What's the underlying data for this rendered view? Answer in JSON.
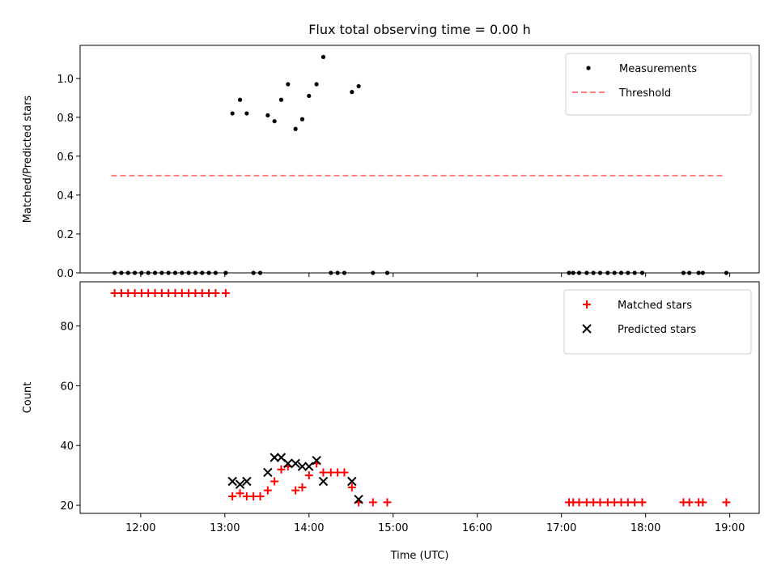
{
  "figure": {
    "title": "Flux total observing time = 0.00 h"
  },
  "chart_data": [
    {
      "type": "scatter",
      "ylabel": "Matched/Predicted stars",
      "xlim": [
        11.28,
        19.35
      ],
      "ylim": [
        0.0,
        1.17
      ],
      "yticks": [
        0.0,
        0.2,
        0.4,
        0.6,
        0.8,
        1.0
      ],
      "ytick_labels": [
        "0.0",
        "0.2",
        "0.4",
        "0.6",
        "0.8",
        "1.0"
      ],
      "xticks": [
        12,
        13,
        14,
        15,
        16,
        17,
        18,
        19
      ],
      "legend_position": "upper-right",
      "colors": {
        "measurements": "#000000",
        "threshold": "#ff7f7f"
      },
      "series": [
        {
          "name": "Measurements",
          "kind": "scatter",
          "points": [
            [
              11.69,
              0
            ],
            [
              11.77,
              0
            ],
            [
              11.85,
              0
            ],
            [
              11.93,
              0
            ],
            [
              12.01,
              0
            ],
            [
              12.09,
              0
            ],
            [
              12.17,
              0
            ],
            [
              12.25,
              0
            ],
            [
              12.33,
              0
            ],
            [
              12.41,
              0
            ],
            [
              12.49,
              0
            ],
            [
              12.57,
              0
            ],
            [
              12.65,
              0
            ],
            [
              12.73,
              0
            ],
            [
              12.81,
              0
            ],
            [
              12.89,
              0
            ],
            [
              13.01,
              0
            ],
            [
              13.09,
              0.82
            ],
            [
              13.18,
              0.89
            ],
            [
              13.26,
              0.82
            ],
            [
              13.34,
              0
            ],
            [
              13.42,
              0
            ],
            [
              13.51,
              0.81
            ],
            [
              13.59,
              0.78
            ],
            [
              13.67,
              0.89
            ],
            [
              13.75,
              0.97
            ],
            [
              13.84,
              0.74
            ],
            [
              13.92,
              0.79
            ],
            [
              14.0,
              0.91
            ],
            [
              14.09,
              0.97
            ],
            [
              14.17,
              1.11
            ],
            [
              14.26,
              0
            ],
            [
              14.34,
              0
            ],
            [
              14.42,
              0
            ],
            [
              14.51,
              0.93
            ],
            [
              14.59,
              0.96
            ],
            [
              14.76,
              0
            ],
            [
              14.93,
              0
            ],
            [
              17.09,
              0
            ],
            [
              17.14,
              0
            ],
            [
              17.21,
              0
            ],
            [
              17.3,
              0
            ],
            [
              17.38,
              0
            ],
            [
              17.46,
              0
            ],
            [
              17.55,
              0
            ],
            [
              17.63,
              0
            ],
            [
              17.71,
              0
            ],
            [
              17.79,
              0
            ],
            [
              17.87,
              0
            ],
            [
              17.96,
              0
            ],
            [
              18.45,
              0
            ],
            [
              18.52,
              0
            ],
            [
              18.63,
              0
            ],
            [
              18.68,
              0
            ],
            [
              18.96,
              0
            ]
          ]
        },
        {
          "name": "Threshold",
          "kind": "line",
          "points": [
            [
              11.65,
              0.5
            ],
            [
              18.95,
              0.5
            ]
          ]
        }
      ]
    },
    {
      "type": "scatter",
      "xlabel": "Time (UTC)",
      "ylabel": "Count",
      "xlim": [
        11.28,
        19.35
      ],
      "ylim": [
        17.3,
        94.8
      ],
      "yticks": [
        20,
        40,
        60,
        80
      ],
      "ytick_labels": [
        "20",
        "40",
        "60",
        "80"
      ],
      "xticks": [
        12,
        13,
        14,
        15,
        16,
        17,
        18,
        19
      ],
      "xtick_labels": [
        "12:00",
        "13:00",
        "14:00",
        "15:00",
        "16:00",
        "17:00",
        "18:00",
        "19:00"
      ],
      "legend_position": "upper-right",
      "colors": {
        "matched": "#ff0000",
        "predicted": "#000000"
      },
      "series": [
        {
          "name": "Matched stars",
          "kind": "plus",
          "points": [
            [
              11.69,
              91
            ],
            [
              11.77,
              91
            ],
            [
              11.85,
              91
            ],
            [
              11.93,
              91
            ],
            [
              12.01,
              91
            ],
            [
              12.09,
              91
            ],
            [
              12.17,
              91
            ],
            [
              12.25,
              91
            ],
            [
              12.33,
              91
            ],
            [
              12.41,
              91
            ],
            [
              12.49,
              91
            ],
            [
              12.57,
              91
            ],
            [
              12.65,
              91
            ],
            [
              12.73,
              91
            ],
            [
              12.81,
              91
            ],
            [
              12.89,
              91
            ],
            [
              13.01,
              91
            ],
            [
              13.09,
              23
            ],
            [
              13.18,
              24
            ],
            [
              13.26,
              23
            ],
            [
              13.34,
              23
            ],
            [
              13.42,
              23
            ],
            [
              13.51,
              25
            ],
            [
              13.59,
              28
            ],
            [
              13.67,
              32
            ],
            [
              13.75,
              33
            ],
            [
              13.84,
              25
            ],
            [
              13.92,
              26
            ],
            [
              14.0,
              30
            ],
            [
              14.09,
              34
            ],
            [
              14.17,
              31
            ],
            [
              14.26,
              31
            ],
            [
              14.34,
              31
            ],
            [
              14.42,
              31
            ],
            [
              14.51,
              26
            ],
            [
              14.59,
              21
            ],
            [
              14.76,
              21
            ],
            [
              14.93,
              21
            ],
            [
              17.09,
              21
            ],
            [
              17.14,
              21
            ],
            [
              17.21,
              21
            ],
            [
              17.3,
              21
            ],
            [
              17.38,
              21
            ],
            [
              17.46,
              21
            ],
            [
              17.55,
              21
            ],
            [
              17.63,
              21
            ],
            [
              17.71,
              21
            ],
            [
              17.79,
              21
            ],
            [
              17.87,
              21
            ],
            [
              17.96,
              21
            ],
            [
              18.45,
              21
            ],
            [
              18.52,
              21
            ],
            [
              18.63,
              21
            ],
            [
              18.68,
              21
            ],
            [
              18.96,
              21
            ]
          ]
        },
        {
          "name": "Predicted stars",
          "kind": "x",
          "points": [
            [
              13.09,
              28
            ],
            [
              13.18,
              27
            ],
            [
              13.26,
              28
            ],
            [
              13.51,
              31
            ],
            [
              13.59,
              36
            ],
            [
              13.67,
              36
            ],
            [
              13.75,
              34
            ],
            [
              13.84,
              34
            ],
            [
              13.92,
              33
            ],
            [
              14.0,
              33
            ],
            [
              14.09,
              35
            ],
            [
              14.17,
              28
            ],
            [
              14.51,
              28
            ],
            [
              14.59,
              22
            ]
          ]
        }
      ]
    }
  ]
}
